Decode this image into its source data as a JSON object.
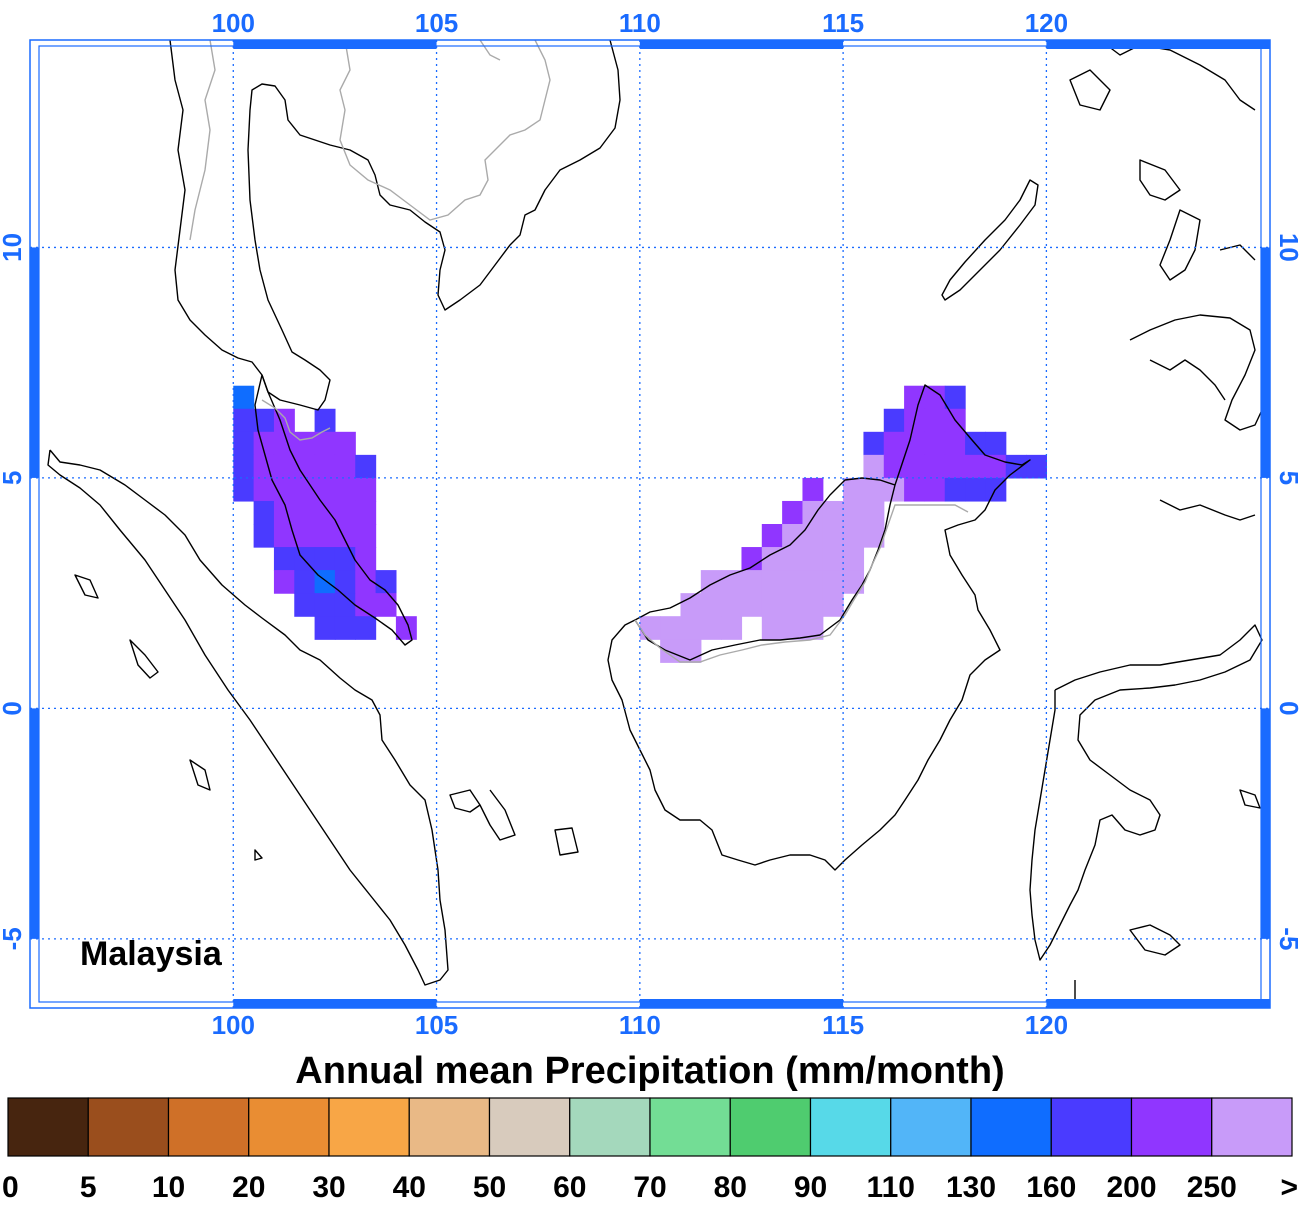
{
  "region_label": "Malaysia",
  "colorbar": {
    "title": "Annual mean Precipitation (mm/month)",
    "labels": [
      "0",
      "5",
      "10",
      "20",
      "30",
      "40",
      "50",
      "60",
      "70",
      "80",
      "90",
      "110",
      "130",
      "160",
      "200",
      "250",
      ">"
    ],
    "colors": [
      "#47250f",
      "#9a4e1d",
      "#cf7028",
      "#e98d33",
      "#f8a646",
      "#e9b986",
      "#d8cbbd",
      "#a4d8bc",
      "#73dd95",
      "#4fcc6f",
      "#57d9e8",
      "#52b5f8",
      "#0f6dff",
      "#4a3bff",
      "#9036ff",
      "#c89bf9"
    ]
  },
  "axes": {
    "lon_ticks": [
      "100",
      "105",
      "110",
      "115",
      "120"
    ],
    "lat_ticks": [
      "10",
      "5",
      "0",
      "-5"
    ],
    "lon_range": [
      95,
      125.5
    ],
    "lat_range": [
      -6.5,
      14.5
    ],
    "tick_color": "#1a6bff",
    "grid": "dotted"
  },
  "chart_data": {
    "type": "heatmap",
    "title": "",
    "xlabel": "",
    "ylabel": "",
    "xlim": [
      95,
      125.5
    ],
    "ylim": [
      -6.5,
      14.5
    ],
    "cell_size_deg": 0.5,
    "cells": [
      [
        100.25,
        6.75,
        12
      ],
      [
        100.25,
        6.25,
        13
      ],
      [
        100.75,
        6.25,
        13
      ],
      [
        101.25,
        6.25,
        14
      ],
      [
        102.25,
        6.25,
        13
      ],
      [
        100.25,
        5.75,
        13
      ],
      [
        100.75,
        5.75,
        14
      ],
      [
        101.25,
        5.75,
        14
      ],
      [
        101.75,
        5.75,
        14
      ],
      [
        102.25,
        5.75,
        14
      ],
      [
        102.75,
        5.75,
        14
      ],
      [
        100.25,
        5.25,
        13
      ],
      [
        100.75,
        5.25,
        14
      ],
      [
        101.25,
        5.25,
        14
      ],
      [
        101.75,
        5.25,
        14
      ],
      [
        102.25,
        5.25,
        14
      ],
      [
        102.75,
        5.25,
        14
      ],
      [
        103.25,
        5.25,
        13
      ],
      [
        100.25,
        4.75,
        13
      ],
      [
        100.75,
        4.75,
        14
      ],
      [
        101.25,
        4.75,
        14
      ],
      [
        101.75,
        4.75,
        14
      ],
      [
        102.25,
        4.75,
        14
      ],
      [
        102.75,
        4.75,
        14
      ],
      [
        103.25,
        4.75,
        14
      ],
      [
        100.75,
        4.25,
        13
      ],
      [
        101.25,
        4.25,
        14
      ],
      [
        101.75,
        4.25,
        14
      ],
      [
        102.25,
        4.25,
        14
      ],
      [
        102.75,
        4.25,
        14
      ],
      [
        103.25,
        4.25,
        14
      ],
      [
        100.75,
        3.75,
        13
      ],
      [
        101.25,
        3.75,
        14
      ],
      [
        101.75,
        3.75,
        14
      ],
      [
        102.25,
        3.75,
        14
      ],
      [
        102.75,
        3.75,
        14
      ],
      [
        103.25,
        3.75,
        14
      ],
      [
        101.25,
        3.25,
        13
      ],
      [
        101.75,
        3.25,
        13
      ],
      [
        102.25,
        3.25,
        13
      ],
      [
        102.75,
        3.25,
        13
      ],
      [
        103.25,
        3.25,
        14
      ],
      [
        101.25,
        2.75,
        14
      ],
      [
        101.75,
        2.75,
        13
      ],
      [
        102.25,
        2.75,
        12
      ],
      [
        102.75,
        2.75,
        13
      ],
      [
        103.25,
        2.75,
        14
      ],
      [
        103.75,
        2.75,
        13
      ],
      [
        101.75,
        2.25,
        13
      ],
      [
        102.25,
        2.25,
        13
      ],
      [
        102.75,
        2.25,
        13
      ],
      [
        103.25,
        2.25,
        14
      ],
      [
        103.75,
        2.25,
        14
      ],
      [
        102.25,
        1.75,
        13
      ],
      [
        102.75,
        1.75,
        13
      ],
      [
        103.25,
        1.75,
        13
      ],
      [
        104.25,
        1.75,
        14
      ],
      [
        116.75,
        6.75,
        14
      ],
      [
        117.25,
        6.75,
        14
      ],
      [
        117.75,
        6.75,
        13
      ],
      [
        116.25,
        6.25,
        13
      ],
      [
        116.75,
        6.25,
        14
      ],
      [
        117.25,
        6.25,
        14
      ],
      [
        117.75,
        6.25,
        14
      ],
      [
        115.75,
        5.75,
        13
      ],
      [
        116.25,
        5.75,
        14
      ],
      [
        116.75,
        5.75,
        14
      ],
      [
        117.25,
        5.75,
        14
      ],
      [
        117.75,
        5.75,
        14
      ],
      [
        118.25,
        5.75,
        13
      ],
      [
        118.75,
        5.75,
        13
      ],
      [
        115.75,
        5.25,
        15
      ],
      [
        116.25,
        5.25,
        14
      ],
      [
        116.75,
        5.25,
        14
      ],
      [
        117.25,
        5.25,
        14
      ],
      [
        117.75,
        5.25,
        14
      ],
      [
        118.25,
        5.25,
        14
      ],
      [
        118.75,
        5.25,
        14
      ],
      [
        119.25,
        5.25,
        13
      ],
      [
        119.75,
        5.25,
        13
      ],
      [
        114.25,
        4.75,
        14
      ],
      [
        115.25,
        4.75,
        15
      ],
      [
        115.75,
        4.75,
        15
      ],
      [
        116.25,
        4.75,
        15
      ],
      [
        116.75,
        4.75,
        14
      ],
      [
        117.25,
        4.75,
        14
      ],
      [
        117.75,
        4.75,
        13
      ],
      [
        118.25,
        4.75,
        13
      ],
      [
        118.75,
        4.75,
        13
      ],
      [
        113.75,
        4.25,
        14
      ],
      [
        114.25,
        4.25,
        15
      ],
      [
        114.75,
        4.25,
        15
      ],
      [
        115.25,
        4.25,
        15
      ],
      [
        115.75,
        4.25,
        15
      ],
      [
        113.25,
        3.75,
        14
      ],
      [
        113.75,
        3.75,
        15
      ],
      [
        114.25,
        3.75,
        15
      ],
      [
        114.75,
        3.75,
        15
      ],
      [
        115.25,
        3.75,
        15
      ],
      [
        115.75,
        3.75,
        15
      ],
      [
        112.75,
        3.25,
        14
      ],
      [
        113.25,
        3.25,
        15
      ],
      [
        113.75,
        3.25,
        15
      ],
      [
        114.25,
        3.25,
        15
      ],
      [
        114.75,
        3.25,
        15
      ],
      [
        115.25,
        3.25,
        15
      ],
      [
        111.75,
        2.75,
        15
      ],
      [
        112.25,
        2.75,
        15
      ],
      [
        112.75,
        2.75,
        15
      ],
      [
        113.25,
        2.75,
        15
      ],
      [
        113.75,
        2.75,
        15
      ],
      [
        114.25,
        2.75,
        15
      ],
      [
        114.75,
        2.75,
        15
      ],
      [
        115.25,
        2.75,
        15
      ],
      [
        111.25,
        2.25,
        15
      ],
      [
        111.75,
        2.25,
        15
      ],
      [
        112.25,
        2.25,
        15
      ],
      [
        112.75,
        2.25,
        15
      ],
      [
        113.25,
        2.25,
        15
      ],
      [
        113.75,
        2.25,
        15
      ],
      [
        114.25,
        2.25,
        15
      ],
      [
        114.75,
        2.25,
        15
      ],
      [
        110.25,
        1.75,
        15
      ],
      [
        110.75,
        1.75,
        15
      ],
      [
        111.25,
        1.75,
        15
      ],
      [
        111.75,
        1.75,
        15
      ],
      [
        112.25,
        1.75,
        15
      ],
      [
        113.25,
        1.75,
        15
      ],
      [
        113.75,
        1.75,
        15
      ],
      [
        114.25,
        1.75,
        15
      ],
      [
        110.75,
        1.25,
        15
      ],
      [
        111.25,
        1.25,
        15
      ]
    ]
  }
}
